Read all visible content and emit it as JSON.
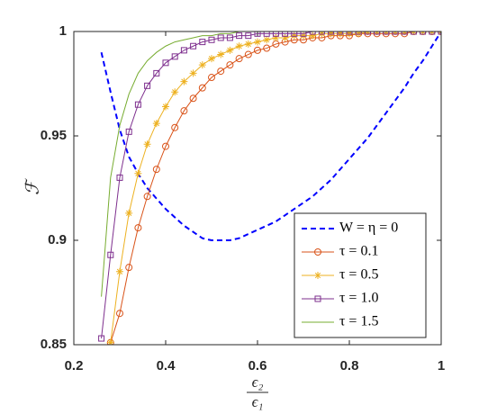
{
  "chart_data": {
    "type": "line",
    "y_label": "ℱ",
    "x_label_numerator": "ϵ₂",
    "x_label_denominator": "ϵ₁",
    "x": [
      0.26,
      0.28,
      0.3,
      0.32,
      0.34,
      0.36,
      0.38,
      0.4,
      0.42,
      0.44,
      0.46,
      0.48,
      0.5,
      0.52,
      0.54,
      0.56,
      0.58,
      0.6,
      0.62,
      0.64,
      0.66,
      0.68,
      0.7,
      0.72,
      0.74,
      0.76,
      0.78,
      0.8,
      0.82,
      0.84,
      0.86,
      0.88,
      0.9,
      0.92,
      0.94,
      0.96,
      0.98,
      1.0
    ],
    "series": [
      {
        "name": "W = η = 0",
        "color": "#0000ff",
        "dash": true,
        "marker": "none",
        "values": [
          0.99,
          0.971,
          0.953,
          0.94,
          0.932,
          0.925,
          0.92,
          0.915,
          0.911,
          0.907,
          0.904,
          0.901,
          0.9,
          0.9,
          0.9,
          0.901,
          0.903,
          0.905,
          0.907,
          0.909,
          0.912,
          0.915,
          0.918,
          0.921,
          0.925,
          0.929,
          0.934,
          0.939,
          0.944,
          0.949,
          0.955,
          0.961,
          0.967,
          0.973,
          0.98,
          0.986,
          0.993,
          1.0
        ]
      },
      {
        "name": "τ = 0.1",
        "color": "#d95319",
        "dash": false,
        "marker": "circle",
        "values": [
          null,
          0.851,
          0.865,
          0.887,
          0.906,
          0.921,
          0.934,
          0.945,
          0.954,
          0.962,
          0.968,
          0.973,
          0.978,
          0.981,
          0.984,
          0.987,
          0.989,
          0.991,
          0.992,
          0.994,
          0.995,
          0.996,
          0.996,
          0.997,
          0.997,
          0.998,
          0.998,
          0.998,
          0.999,
          0.999,
          0.999,
          0.999,
          0.999,
          0.999,
          1,
          1,
          1,
          1
        ]
      },
      {
        "name": "τ = 0.5",
        "color": "#edb120",
        "dash": false,
        "marker": "asterisk",
        "values": [
          null,
          0.851,
          0.885,
          0.913,
          0.932,
          0.946,
          0.956,
          0.964,
          0.971,
          0.976,
          0.98,
          0.984,
          0.987,
          0.989,
          0.991,
          0.993,
          0.994,
          0.995,
          0.996,
          0.997,
          0.997,
          0.998,
          0.998,
          0.998,
          0.999,
          0.999,
          0.999,
          0.999,
          0.999,
          1,
          1,
          1,
          1,
          1,
          1,
          1,
          1,
          1
        ]
      },
      {
        "name": "τ = 1.0",
        "color": "#7e2f8e",
        "dash": false,
        "marker": "square",
        "values": [
          0.853,
          0.893,
          0.93,
          0.952,
          0.965,
          0.974,
          0.98,
          0.985,
          0.988,
          0.991,
          0.993,
          0.995,
          0.996,
          0.997,
          0.997,
          0.998,
          0.998,
          0.999,
          0.999,
          0.999,
          0.999,
          0.999,
          0.999,
          1,
          1,
          1,
          1,
          1,
          1,
          1,
          1,
          1,
          1,
          1,
          1,
          1,
          1,
          1
        ]
      },
      {
        "name": "τ = 1.5",
        "color": "#77ac30",
        "dash": false,
        "marker": "none",
        "values": [
          0.873,
          0.93,
          0.955,
          0.97,
          0.98,
          0.986,
          0.99,
          0.993,
          0.995,
          0.996,
          0.997,
          0.998,
          0.998,
          0.999,
          0.999,
          1,
          1,
          1,
          1,
          1,
          1,
          1,
          1,
          1,
          1,
          1,
          1,
          1,
          1,
          1,
          1,
          1,
          1,
          1,
          1,
          1,
          1,
          1
        ]
      }
    ],
    "xlim": [
      0.2,
      1
    ],
    "ylim": [
      0.85,
      1
    ],
    "xticks": [
      0.2,
      0.4,
      0.6,
      0.8,
      1
    ],
    "yticks": [
      0.85,
      0.9,
      0.95,
      1
    ],
    "grid": false,
    "legend": "lower right"
  }
}
